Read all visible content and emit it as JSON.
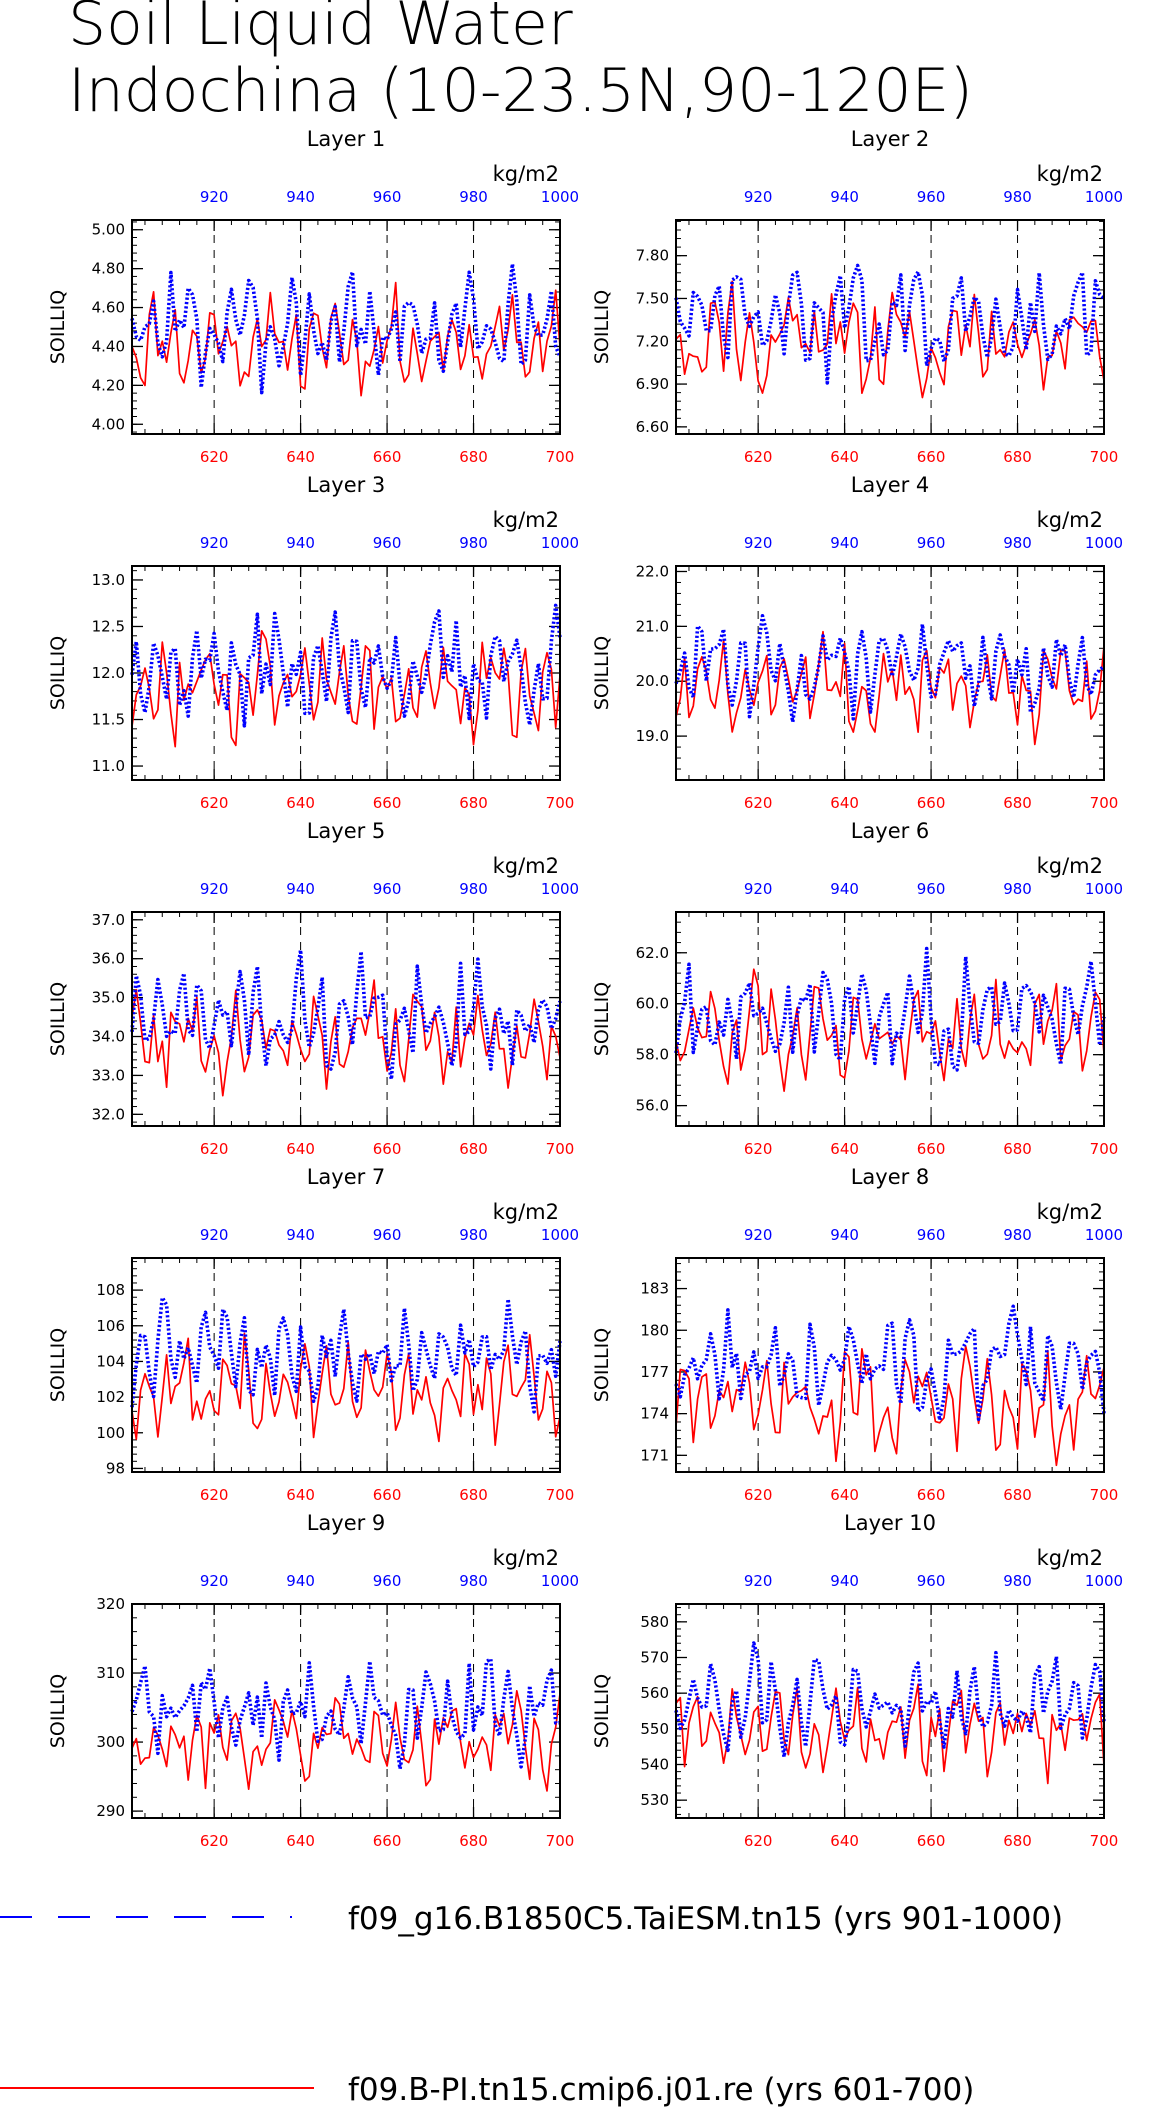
{
  "title_line1": "Soil Liquid Water",
  "title_line2": "Indochina (10-23.5N,90-120E)",
  "colors": {
    "blue": "#0000ff",
    "red": "#ff0000",
    "black": "#000000"
  },
  "legend": [
    {
      "label": "f09_g16.B1850C5.TaiESM.tn15 (yrs 901-1000)",
      "color": "#0000ff",
      "style": "dashed"
    },
    {
      "label": "f09.B-PI.tn15.cmip6.j01.re (yrs 601-700)",
      "color": "#ff0000",
      "style": "solid"
    }
  ],
  "chart_data": [
    {
      "type": "line",
      "title": "Layer 1",
      "ylabel": "SOILLIQ",
      "units": "kg/m2",
      "ylim": [
        3.95,
        5.05
      ],
      "yticks": [
        4.0,
        4.2,
        4.4,
        4.6,
        4.8,
        5.0
      ],
      "ytick_labels": [
        "4.00",
        "4.20",
        "4.40",
        "4.60",
        "4.80",
        "5.00"
      ],
      "x_bottom": {
        "range": [
          601,
          700
        ],
        "ticks": [
          620,
          640,
          660,
          680,
          700
        ],
        "color": "#ff0000"
      },
      "x_top": {
        "range": [
          901,
          1000
        ],
        "ticks": [
          920,
          940,
          960,
          980,
          1000
        ],
        "color": "#0000ff"
      },
      "series": [
        {
          "name": "f09_g16.B1850C5.TaiESM.tn15 (yrs 901-1000)",
          "mean": 4.5,
          "amp": 0.25
        },
        {
          "name": "f09.B-PI.tn15.cmip6.j01.re (yrs 601-700)",
          "mean": 4.42,
          "amp": 0.22
        }
      ]
    },
    {
      "type": "line",
      "title": "Layer 2",
      "ylabel": "SOILLIQ",
      "units": "kg/m2",
      "ylim": [
        6.55,
        8.05
      ],
      "yticks": [
        6.6,
        6.9,
        7.2,
        7.5,
        7.8
      ],
      "ytick_labels": [
        "6.60",
        "6.90",
        "7.20",
        "7.50",
        "7.80"
      ],
      "x_bottom": {
        "range": [
          601,
          700
        ],
        "ticks": [
          620,
          640,
          660,
          680,
          700
        ],
        "color": "#ff0000"
      },
      "x_top": {
        "range": [
          901,
          1000
        ],
        "ticks": [
          920,
          940,
          960,
          980,
          1000
        ],
        "color": "#0000ff"
      },
      "series": [
        {
          "name": "f09_g16.B1850C5.TaiESM.tn15 (yrs 901-1000)",
          "mean": 7.35,
          "amp": 0.32
        },
        {
          "name": "f09.B-PI.tn15.cmip6.j01.re (yrs 601-700)",
          "mean": 7.2,
          "amp": 0.3
        }
      ]
    },
    {
      "type": "line",
      "title": "Layer 3",
      "ylabel": "SOILLIQ",
      "units": "kg/m2",
      "ylim": [
        10.85,
        13.15
      ],
      "yticks": [
        11.0,
        11.5,
        12.0,
        12.5,
        13.0
      ],
      "ytick_labels": [
        "11.0",
        "11.5",
        "12.0",
        "12.5",
        "13.0"
      ],
      "x_bottom": {
        "range": [
          601,
          700
        ],
        "ticks": [
          620,
          640,
          660,
          680,
          700
        ],
        "color": "#ff0000"
      },
      "x_top": {
        "range": [
          901,
          1000
        ],
        "ticks": [
          920,
          940,
          960,
          980,
          1000
        ],
        "color": "#0000ff"
      },
      "series": [
        {
          "name": "f09_g16.B1850C5.TaiESM.tn15 (yrs 901-1000)",
          "mean": 12.05,
          "amp": 0.5
        },
        {
          "name": "f09.B-PI.tn15.cmip6.j01.re (yrs 601-700)",
          "mean": 11.85,
          "amp": 0.5
        }
      ]
    },
    {
      "type": "line",
      "title": "Layer 4",
      "ylabel": "SOILLIQ",
      "units": "kg/m2",
      "ylim": [
        18.2,
        22.1
      ],
      "yticks": [
        19.0,
        20.0,
        21.0,
        22.0
      ],
      "ytick_labels": [
        "19.0",
        "20.0",
        "21.0",
        "22.0"
      ],
      "x_bottom": {
        "range": [
          601,
          700
        ],
        "ticks": [
          620,
          640,
          660,
          680,
          700
        ],
        "color": "#ff0000"
      },
      "x_top": {
        "range": [
          901,
          1000
        ],
        "ticks": [
          920,
          940,
          960,
          980,
          1000
        ],
        "color": "#0000ff"
      },
      "series": [
        {
          "name": "f09_g16.B1850C5.TaiESM.tn15 (yrs 901-1000)",
          "mean": 20.3,
          "amp": 0.8
        },
        {
          "name": "f09.B-PI.tn15.cmip6.j01.re (yrs 601-700)",
          "mean": 19.9,
          "amp": 0.75
        }
      ]
    },
    {
      "type": "line",
      "title": "Layer 5",
      "ylabel": "SOILLIQ",
      "units": "kg/m2",
      "ylim": [
        31.7,
        37.2
      ],
      "yticks": [
        32.0,
        33.0,
        34.0,
        35.0,
        36.0,
        37.0
      ],
      "ytick_labels": [
        "32.0",
        "33.0",
        "34.0",
        "35.0",
        "36.0",
        "37.0"
      ],
      "x_bottom": {
        "range": [
          601,
          700
        ],
        "ticks": [
          620,
          640,
          660,
          680,
          700
        ],
        "color": "#ff0000"
      },
      "x_top": {
        "range": [
          901,
          1000
        ],
        "ticks": [
          920,
          940,
          960,
          980,
          1000
        ],
        "color": "#0000ff"
      },
      "series": [
        {
          "name": "f09_g16.B1850C5.TaiESM.tn15 (yrs 901-1000)",
          "mean": 34.5,
          "amp": 1.2
        },
        {
          "name": "f09.B-PI.tn15.cmip6.j01.re (yrs 601-700)",
          "mean": 34.0,
          "amp": 1.1
        }
      ]
    },
    {
      "type": "line",
      "title": "Layer 6",
      "ylabel": "SOILLIQ",
      "units": "kg/m2",
      "ylim": [
        55.2,
        63.6
      ],
      "yticks": [
        56.0,
        58.0,
        60.0,
        62.0
      ],
      "ytick_labels": [
        "56.0",
        "58.0",
        "60.0",
        "62.0"
      ],
      "x_bottom": {
        "range": [
          601,
          700
        ],
        "ticks": [
          620,
          640,
          660,
          680,
          700
        ],
        "color": "#ff0000"
      },
      "x_top": {
        "range": [
          901,
          1000
        ],
        "ticks": [
          920,
          940,
          960,
          980,
          1000
        ],
        "color": "#0000ff"
      },
      "series": [
        {
          "name": "f09_g16.B1850C5.TaiESM.tn15 (yrs 901-1000)",
          "mean": 59.6,
          "amp": 1.9
        },
        {
          "name": "f09.B-PI.tn15.cmip6.j01.re (yrs 601-700)",
          "mean": 58.8,
          "amp": 1.8
        }
      ]
    },
    {
      "type": "line",
      "title": "Layer 7",
      "ylabel": "SOILLIQ",
      "units": "kg/m2",
      "ylim": [
        97.8,
        109.8
      ],
      "yticks": [
        98,
        100,
        102,
        104,
        106,
        108
      ],
      "ytick_labels": [
        "98",
        "100",
        "102",
        "104",
        "106",
        "108"
      ],
      "x_bottom": {
        "range": [
          601,
          700
        ],
        "ticks": [
          620,
          640,
          660,
          680,
          700
        ],
        "color": "#ff0000"
      },
      "x_top": {
        "range": [
          901,
          1000
        ],
        "ticks": [
          920,
          940,
          960,
          980,
          1000
        ],
        "color": "#0000ff"
      },
      "series": [
        {
          "name": "f09_g16.B1850C5.TaiESM.tn15 (yrs 901-1000)",
          "mean": 104.3,
          "amp": 2.6
        },
        {
          "name": "f09.B-PI.tn15.cmip6.j01.re (yrs 601-700)",
          "mean": 102.5,
          "amp": 2.6
        }
      ]
    },
    {
      "type": "line",
      "title": "Layer 8",
      "ylabel": "SOILLIQ",
      "units": "kg/m2",
      "ylim": [
        169.8,
        185.2
      ],
      "yticks": [
        171,
        174,
        177,
        180,
        183
      ],
      "ytick_labels": [
        "171",
        "174",
        "177",
        "180",
        "183"
      ],
      "x_bottom": {
        "range": [
          601,
          700
        ],
        "ticks": [
          620,
          640,
          660,
          680,
          700
        ],
        "color": "#ff0000"
      },
      "x_top": {
        "range": [
          901,
          1000
        ],
        "ticks": [
          920,
          940,
          960,
          980,
          1000
        ],
        "color": "#0000ff"
      },
      "series": [
        {
          "name": "f09_g16.B1850C5.TaiESM.tn15 (yrs 901-1000)",
          "mean": 177.6,
          "amp": 3.4
        },
        {
          "name": "f09.B-PI.tn15.cmip6.j01.re (yrs 601-700)",
          "mean": 175.0,
          "amp": 3.3
        }
      ]
    },
    {
      "type": "line",
      "title": "Layer 9",
      "ylabel": "SOILLIQ",
      "units": "kg/m2",
      "ylim": [
        289,
        320
      ],
      "yticks": [
        290,
        300,
        310,
        320
      ],
      "ytick_labels": [
        "290",
        "300",
        "310",
        "320"
      ],
      "x_bottom": {
        "range": [
          601,
          700
        ],
        "ticks": [
          620,
          640,
          660,
          680,
          700
        ],
        "color": "#ff0000"
      },
      "x_top": {
        "range": [
          901,
          1000
        ],
        "ticks": [
          920,
          940,
          960,
          980,
          1000
        ],
        "color": "#0000ff"
      },
      "series": [
        {
          "name": "f09_g16.B1850C5.TaiESM.tn15 (yrs 901-1000)",
          "mean": 304.5,
          "amp": 6.2
        },
        {
          "name": "f09.B-PI.tn15.cmip6.j01.re (yrs 601-700)",
          "mean": 300.5,
          "amp": 5.6
        }
      ]
    },
    {
      "type": "line",
      "title": "Layer 10",
      "ylabel": "SOILLIQ",
      "units": "kg/m2",
      "ylim": [
        525,
        585
      ],
      "yticks": [
        530,
        540,
        550,
        560,
        570,
        580
      ],
      "ytick_labels": [
        "530",
        "540",
        "550",
        "560",
        "570",
        "580"
      ],
      "x_bottom": {
        "range": [
          601,
          700
        ],
        "ticks": [
          620,
          640,
          660,
          680,
          700
        ],
        "color": "#ff0000"
      },
      "x_top": {
        "range": [
          901,
          1000
        ],
        "ticks": [
          920,
          940,
          960,
          980,
          1000
        ],
        "color": "#0000ff"
      },
      "series": [
        {
          "name": "f09_g16.B1850C5.TaiESM.tn15 (yrs 901-1000)",
          "mean": 557.0,
          "amp": 12.0
        },
        {
          "name": "f09.B-PI.tn15.cmip6.j01.re (yrs 601-700)",
          "mean": 550.5,
          "amp": 11.0
        }
      ]
    }
  ]
}
